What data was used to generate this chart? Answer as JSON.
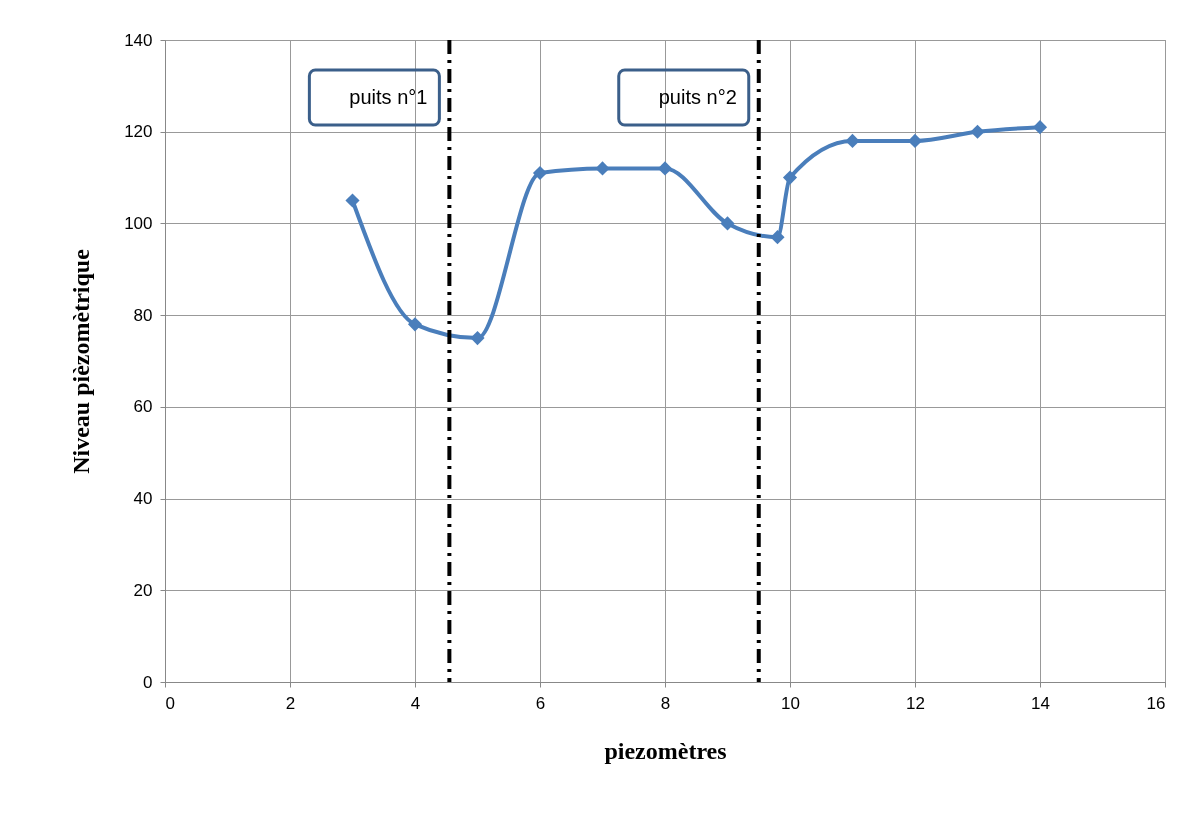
{
  "chart_data": {
    "type": "line",
    "xlabel": "piezomètres",
    "ylabel": "Niveau pièzomètrique",
    "series": [
      {
        "color": "#4a7ebb",
        "x": [
          3,
          4,
          5,
          6,
          7,
          8,
          9,
          9.8,
          10,
          11,
          12,
          13,
          14
        ],
        "values": [
          105,
          78,
          75,
          111,
          112,
          112,
          100,
          97,
          110,
          118,
          118,
          120,
          121
        ]
      }
    ],
    "xlim": [
      0,
      16
    ],
    "xticks": [
      0,
      2,
      4,
      6,
      8,
      10,
      12,
      14,
      16
    ],
    "ylim": [
      0,
      140
    ],
    "yticks": [
      0,
      20,
      40,
      60,
      80,
      100,
      120,
      140
    ],
    "ref_lines": [
      {
        "axis": "x",
        "value": 4.55,
        "label": "puits n°1",
        "color": "#000000",
        "line_style": "dashed"
      },
      {
        "axis": "x",
        "value": 9.5,
        "label": "puits n°2",
        "color": "#000000",
        "line_style": "dashed"
      }
    ],
    "grid": true,
    "marker": "diamond",
    "line_style": "solid"
  }
}
